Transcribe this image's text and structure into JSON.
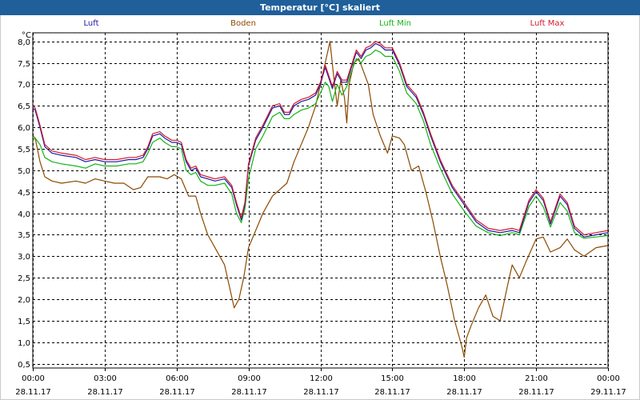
{
  "window": {
    "title": "Temperatur [°C] skaliert"
  },
  "chart_data": {
    "type": "line",
    "title": "Temperatur [°C] skaliert",
    "ylabel": "°C",
    "ylim": [
      0.4,
      8.2
    ],
    "xlim": [
      0,
      24
    ],
    "grid": true,
    "legend_position": "top",
    "y_ticks": [
      "0,5",
      "1,0",
      "1,5",
      "2,0",
      "2,5",
      "3,0",
      "3,5",
      "4,0",
      "4,5",
      "5,0",
      "5,5",
      "6,0",
      "6,5",
      "7,0",
      "7,5",
      "8,0"
    ],
    "x_ticks": [
      {
        "time": "00:00",
        "date": "28.11.17"
      },
      {
        "time": "03:00",
        "date": "28.11.17"
      },
      {
        "time": "06:00",
        "date": "28.11.17"
      },
      {
        "time": "09:00",
        "date": "28.11.17"
      },
      {
        "time": "12:00",
        "date": "28.11.17"
      },
      {
        "time": "15:00",
        "date": "28.11.17"
      },
      {
        "time": "18:00",
        "date": "28.11.17"
      },
      {
        "time": "21:00",
        "date": "28.11.17"
      },
      {
        "time": "00:00",
        "date": "29.11.17"
      }
    ],
    "series": [
      {
        "name": "Luft",
        "color": "#1a1aa6",
        "x": [
          0,
          0.1,
          0.3,
          0.5,
          0.8,
          1.2,
          1.8,
          2.2,
          2.6,
          3.0,
          3.5,
          4.0,
          4.3,
          4.6,
          4.8,
          5.0,
          5.3,
          5.5,
          5.8,
          6.0,
          6.2,
          6.4,
          6.6,
          6.8,
          7.0,
          7.3,
          7.6,
          8.0,
          8.3,
          8.5,
          8.7,
          8.85,
          9.0,
          9.3,
          9.6,
          10.0,
          10.3,
          10.5,
          10.7,
          10.9,
          11.2,
          11.5,
          11.8,
          12.0,
          12.2,
          12.35,
          12.5,
          12.7,
          12.9,
          13.1,
          13.3,
          13.5,
          13.7,
          13.9,
          14.1,
          14.3,
          14.5,
          14.7,
          15.0,
          15.3,
          15.6,
          16.0,
          16.3,
          16.6,
          17.0,
          17.5,
          18.0,
          18.5,
          19.0,
          19.5,
          20.0,
          20.3,
          20.7,
          21.0,
          21.3,
          21.6,
          22.0,
          22.3,
          22.6,
          23.0,
          23.5,
          24.0
        ],
        "y": [
          6.45,
          6.4,
          6.0,
          5.55,
          5.4,
          5.35,
          5.3,
          5.2,
          5.25,
          5.2,
          5.2,
          5.25,
          5.25,
          5.3,
          5.5,
          5.8,
          5.85,
          5.75,
          5.65,
          5.65,
          5.6,
          5.2,
          5.0,
          5.05,
          4.85,
          4.8,
          4.75,
          4.8,
          4.6,
          4.2,
          3.85,
          4.2,
          5.1,
          5.7,
          6.0,
          6.45,
          6.5,
          6.3,
          6.3,
          6.5,
          6.6,
          6.65,
          6.75,
          7.0,
          7.4,
          7.15,
          6.9,
          7.25,
          7.05,
          7.05,
          7.4,
          7.75,
          7.6,
          7.8,
          7.85,
          7.95,
          7.9,
          7.8,
          7.8,
          7.45,
          6.95,
          6.7,
          6.3,
          5.8,
          5.2,
          4.6,
          4.2,
          3.8,
          3.6,
          3.55,
          3.6,
          3.55,
          4.25,
          4.5,
          4.3,
          3.75,
          4.4,
          4.2,
          3.65,
          3.45,
          3.5,
          3.55
        ]
      },
      {
        "name": "Boden",
        "color": "#8b4a00",
        "x": [
          0,
          0.1,
          0.3,
          0.5,
          0.8,
          1.2,
          1.8,
          2.2,
          2.6,
          3.0,
          3.4,
          3.8,
          4.2,
          4.5,
          4.8,
          5.0,
          5.3,
          5.6,
          5.9,
          6.2,
          6.5,
          6.8,
          7.0,
          7.3,
          7.6,
          8.0,
          8.2,
          8.4,
          8.6,
          8.8,
          9.0,
          9.3,
          9.6,
          10.0,
          10.3,
          10.6,
          10.9,
          11.2,
          11.5,
          11.8,
          12.0,
          12.2,
          12.4,
          12.55,
          12.7,
          12.85,
          13.0,
          13.1,
          13.2,
          13.4,
          13.6,
          13.8,
          14.0,
          14.2,
          14.5,
          14.8,
          15.0,
          15.3,
          15.5,
          15.8,
          16.1,
          16.4,
          16.7,
          17.0,
          17.3,
          17.6,
          17.9,
          18.0,
          18.1,
          18.3,
          18.6,
          18.9,
          19.2,
          19.5,
          19.8,
          20.0,
          20.3,
          20.6,
          21.0,
          21.3,
          21.6,
          22.0,
          22.3,
          22.6,
          23.0,
          23.5,
          24.0
        ],
        "y": [
          5.8,
          5.75,
          5.2,
          4.85,
          4.75,
          4.7,
          4.75,
          4.7,
          4.8,
          4.75,
          4.7,
          4.7,
          4.55,
          4.6,
          4.85,
          4.85,
          4.85,
          4.8,
          4.9,
          4.8,
          4.4,
          4.4,
          4.0,
          3.5,
          3.2,
          2.8,
          2.3,
          1.8,
          2.0,
          2.5,
          3.2,
          3.6,
          4.0,
          4.4,
          4.55,
          4.7,
          5.2,
          5.6,
          6.0,
          6.5,
          7.0,
          7.5,
          8.0,
          7.2,
          6.5,
          7.1,
          6.7,
          6.1,
          7.0,
          7.5,
          7.6,
          7.3,
          7.0,
          6.3,
          5.8,
          5.4,
          5.8,
          5.75,
          5.6,
          5.0,
          5.1,
          4.5,
          3.8,
          3.0,
          2.3,
          1.5,
          0.9,
          0.65,
          1.1,
          1.4,
          1.8,
          2.1,
          1.6,
          1.5,
          2.3,
          2.8,
          2.5,
          2.9,
          3.4,
          3.45,
          3.1,
          3.2,
          3.4,
          3.15,
          3.0,
          3.2,
          3.25
        ]
      },
      {
        "name": "Luft Min",
        "color": "#14b414",
        "x": [
          0,
          0.1,
          0.3,
          0.5,
          0.8,
          1.2,
          1.8,
          2.2,
          2.6,
          3.0,
          3.5,
          4.0,
          4.3,
          4.6,
          4.8,
          5.0,
          5.3,
          5.5,
          5.8,
          6.0,
          6.2,
          6.4,
          6.6,
          6.8,
          7.0,
          7.3,
          7.6,
          8.0,
          8.3,
          8.5,
          8.7,
          8.85,
          9.0,
          9.3,
          9.6,
          10.0,
          10.3,
          10.5,
          10.7,
          10.9,
          11.2,
          11.5,
          11.8,
          12.0,
          12.2,
          12.35,
          12.5,
          12.7,
          12.9,
          13.1,
          13.3,
          13.5,
          13.7,
          13.9,
          14.1,
          14.3,
          14.5,
          14.7,
          15.0,
          15.3,
          15.6,
          16.0,
          16.3,
          16.6,
          17.0,
          17.5,
          18.0,
          18.5,
          19.0,
          19.5,
          20.0,
          20.3,
          20.7,
          21.0,
          21.3,
          21.6,
          22.0,
          22.3,
          22.6,
          23.0,
          23.5,
          24.0
        ],
        "y": [
          5.7,
          5.75,
          5.6,
          5.3,
          5.2,
          5.15,
          5.1,
          5.05,
          5.15,
          5.1,
          5.1,
          5.15,
          5.15,
          5.2,
          5.4,
          5.65,
          5.75,
          5.65,
          5.55,
          5.55,
          5.5,
          5.0,
          4.9,
          4.95,
          4.75,
          4.65,
          4.65,
          4.7,
          4.45,
          4.0,
          3.78,
          4.1,
          4.8,
          5.5,
          5.8,
          6.25,
          6.35,
          6.2,
          6.2,
          6.3,
          6.4,
          6.45,
          6.55,
          6.8,
          7.05,
          6.95,
          6.6,
          7.0,
          6.75,
          6.95,
          7.3,
          7.6,
          7.5,
          7.65,
          7.7,
          7.8,
          7.75,
          7.65,
          7.65,
          7.3,
          6.8,
          6.55,
          6.15,
          5.6,
          5.05,
          4.45,
          4.05,
          3.7,
          3.55,
          3.48,
          3.55,
          3.5,
          4.15,
          4.4,
          4.15,
          3.68,
          4.25,
          4.05,
          3.55,
          3.42,
          3.45,
          3.48
        ]
      },
      {
        "name": "Luft Max",
        "color": "#d41a2a",
        "x": [
          0,
          0.1,
          0.3,
          0.5,
          0.8,
          1.2,
          1.8,
          2.2,
          2.6,
          3.0,
          3.5,
          4.0,
          4.3,
          4.6,
          4.8,
          5.0,
          5.3,
          5.5,
          5.8,
          6.0,
          6.2,
          6.4,
          6.6,
          6.8,
          7.0,
          7.3,
          7.6,
          8.0,
          8.3,
          8.5,
          8.7,
          8.85,
          9.0,
          9.3,
          9.6,
          10.0,
          10.3,
          10.5,
          10.7,
          10.9,
          11.2,
          11.5,
          11.8,
          12.0,
          12.2,
          12.35,
          12.5,
          12.7,
          12.9,
          13.1,
          13.3,
          13.5,
          13.7,
          13.9,
          14.1,
          14.3,
          14.5,
          14.7,
          15.0,
          15.3,
          15.6,
          16.0,
          16.3,
          16.6,
          17.0,
          17.5,
          18.0,
          18.5,
          19.0,
          19.5,
          20.0,
          20.3,
          20.7,
          21.0,
          21.3,
          21.6,
          22.0,
          22.3,
          22.6,
          23.0,
          23.5,
          24.0
        ],
        "y": [
          6.5,
          6.45,
          6.05,
          5.6,
          5.45,
          5.4,
          5.35,
          5.25,
          5.3,
          5.25,
          5.25,
          5.3,
          5.3,
          5.35,
          5.55,
          5.85,
          5.9,
          5.8,
          5.7,
          5.7,
          5.65,
          5.25,
          5.05,
          5.1,
          4.9,
          4.85,
          4.8,
          4.85,
          4.65,
          4.25,
          3.9,
          4.25,
          5.15,
          5.75,
          6.05,
          6.5,
          6.55,
          6.35,
          6.35,
          6.55,
          6.65,
          6.7,
          6.8,
          7.05,
          7.45,
          7.2,
          6.95,
          7.3,
          7.1,
          7.1,
          7.45,
          7.8,
          7.65,
          7.85,
          7.9,
          8.0,
          7.95,
          7.85,
          7.85,
          7.5,
          7.0,
          6.75,
          6.35,
          5.85,
          5.25,
          4.65,
          4.25,
          3.85,
          3.65,
          3.6,
          3.65,
          3.6,
          4.3,
          4.55,
          4.35,
          3.8,
          4.45,
          4.25,
          3.7,
          3.5,
          3.55,
          3.6
        ]
      }
    ]
  }
}
